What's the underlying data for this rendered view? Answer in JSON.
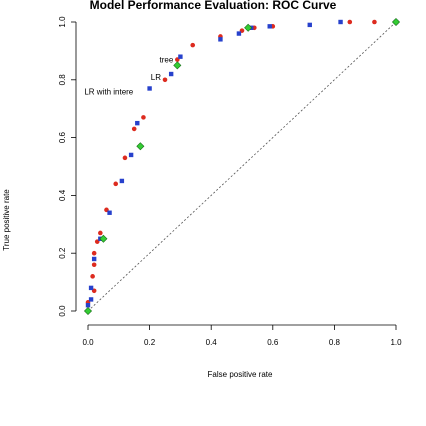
{
  "chart_data": {
    "type": "scatter",
    "title": "Model Performance Evaluation: ROC Curve",
    "xlabel": "False positive rate",
    "ylabel": "True positive rate",
    "xlim": [
      0,
      1
    ],
    "ylim": [
      0,
      1
    ],
    "xticks": [
      "0.0",
      "0.2",
      "0.4",
      "0.6",
      "0.8",
      "1.0"
    ],
    "yticks": [
      "0.0",
      "0.2",
      "0.4",
      "0.6",
      "0.8",
      "1.0"
    ],
    "grid": false,
    "diagonal_reference": true,
    "colors": {
      "red": "#dd2b1f",
      "blue": "#2741cc",
      "green": "#33cc33",
      "diagonal": "#555555"
    },
    "annotations": [
      {
        "text": "tree",
        "x": 0.29,
        "y": 0.87
      },
      {
        "text": "LR",
        "x": 0.25,
        "y": 0.81
      },
      {
        "text": "LR with intere",
        "x": 0.16,
        "y": 0.76
      }
    ],
    "series": [
      {
        "color": "red",
        "points": [
          [
            0.0,
            0.0
          ],
          [
            0.0,
            0.03
          ],
          [
            0.02,
            0.07
          ],
          [
            0.015,
            0.12
          ],
          [
            0.02,
            0.16
          ],
          [
            0.02,
            0.2
          ],
          [
            0.03,
            0.24
          ],
          [
            0.04,
            0.27
          ],
          [
            0.06,
            0.35
          ],
          [
            0.09,
            0.44
          ],
          [
            0.12,
            0.53
          ],
          [
            0.15,
            0.63
          ],
          [
            0.18,
            0.67
          ],
          [
            0.25,
            0.8
          ],
          [
            0.29,
            0.87
          ],
          [
            0.34,
            0.92
          ],
          [
            0.43,
            0.95
          ],
          [
            0.5,
            0.97
          ],
          [
            0.54,
            0.98
          ],
          [
            0.6,
            0.985
          ],
          [
            0.85,
            1.0
          ],
          [
            0.93,
            1.0
          ],
          [
            1.0,
            1.0
          ]
        ]
      },
      {
        "color": "blue",
        "points": [
          [
            0.0,
            0.02
          ],
          [
            0.01,
            0.04
          ],
          [
            0.01,
            0.08
          ],
          [
            0.02,
            0.18
          ],
          [
            0.04,
            0.25
          ],
          [
            0.07,
            0.34
          ],
          [
            0.11,
            0.45
          ],
          [
            0.14,
            0.54
          ],
          [
            0.16,
            0.65
          ],
          [
            0.2,
            0.77
          ],
          [
            0.27,
            0.82
          ],
          [
            0.3,
            0.88
          ],
          [
            0.43,
            0.94
          ],
          [
            0.49,
            0.96
          ],
          [
            0.53,
            0.98
          ],
          [
            0.59,
            0.985
          ],
          [
            0.72,
            0.99
          ],
          [
            0.82,
            1.0
          ],
          [
            1.0,
            1.0
          ]
        ]
      },
      {
        "color": "green",
        "points": [
          [
            0.0,
            0.0
          ],
          [
            0.05,
            0.25
          ],
          [
            0.17,
            0.57
          ],
          [
            0.29,
            0.85
          ],
          [
            0.52,
            0.98
          ],
          [
            1.0,
            1.0
          ]
        ]
      }
    ]
  }
}
